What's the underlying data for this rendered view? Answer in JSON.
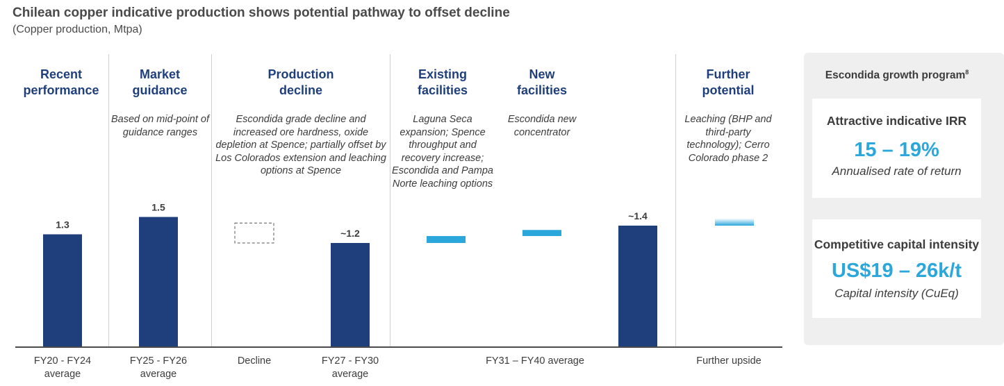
{
  "header": {
    "title": "Chilean copper indicative production shows potential pathway to offset decline",
    "subtitle": "(Copper production, Mtpa)"
  },
  "columns": [
    {
      "heading": "Recent performance",
      "description": ""
    },
    {
      "heading": "Market guidance",
      "description": "Based on mid-point of guidance ranges"
    },
    {
      "heading": "Production decline",
      "description": "Escondida grade decline and increased ore hardness, oxide depletion at Spence; partially offset by Los Colorados extension and leaching options at Spence"
    },
    {
      "heading": "Existing facilities",
      "description": "Laguna Seca expansion; Spence throughput and recovery increase; Escondida and Pampa Norte leaching options"
    },
    {
      "heading": "New facilities",
      "description": "Escondida new concentrator"
    },
    {
      "heading": "Further potential",
      "description": "Leaching (BHP and third-party technology); Cerro Colorado phase 2"
    }
  ],
  "chart_data": {
    "type": "bar",
    "categories": [
      "FY20 - FY24 average",
      "FY25 - FY26 average",
      "Decline",
      "FY27 - FY30 average",
      "Existing facilities",
      "New facilities",
      "FY31 – FY40 average",
      "Further upside"
    ],
    "values": [
      1.3,
      1.5,
      null,
      1.2,
      null,
      null,
      1.4,
      null
    ],
    "data_labels": [
      "1.3",
      "1.5",
      "",
      "~1.2",
      "",
      "",
      "~1.4",
      ""
    ],
    "waterfall_segments": [
      {
        "category": "Decline",
        "style": "dashed-outline",
        "from": 1.2,
        "to": 1.43
      },
      {
        "category": "Existing facilities",
        "style": "solid-light-blue",
        "from": 1.2,
        "to": 1.28
      },
      {
        "category": "New facilities",
        "style": "solid-light-blue",
        "from": 1.28,
        "to": 1.35
      },
      {
        "category": "Further upside",
        "style": "gradient-light-blue",
        "from": 1.4,
        "to": 1.48
      }
    ],
    "x_axis_labels": [
      "FY20 - FY24\naverage",
      "FY25 - FY26\naverage",
      "Decline",
      "FY27 - FY30\naverage",
      "FY31 – FY40 average",
      "Further upside"
    ],
    "ylim": [
      0,
      2.25
    ],
    "bar_color": "#1f3f7c",
    "segment_color": "#2ba7dc"
  },
  "side_panel": {
    "title": "Escondida growth program",
    "footnote": "8",
    "cards": [
      {
        "heading": "Attractive indicative IRR",
        "value": "15 – 19%",
        "subtext": "Annualised rate of return"
      },
      {
        "heading": "Competitive capital intensity",
        "value": "US$19 – 26k/t",
        "subtext": "Capital intensity (CuEq)"
      }
    ]
  }
}
